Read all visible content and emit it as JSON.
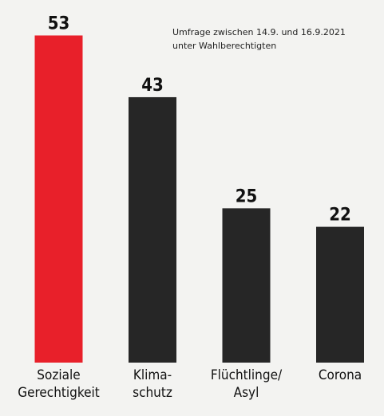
{
  "chart_data": {
    "type": "bar",
    "annotation": "Umfrage zwischen 14.9. und 16.9.2021\nunter Wahlberechtigten",
    "categories": [
      "Soziale\nGerechtigkeit",
      "Klima-\nschutz",
      "Flüchtlinge/\nAsyl",
      "Corona"
    ],
    "values": [
      53,
      43,
      25,
      22
    ],
    "colors": [
      "#e8202a",
      "#262626",
      "#262626",
      "#262626"
    ],
    "ylim": [
      0,
      55
    ]
  }
}
